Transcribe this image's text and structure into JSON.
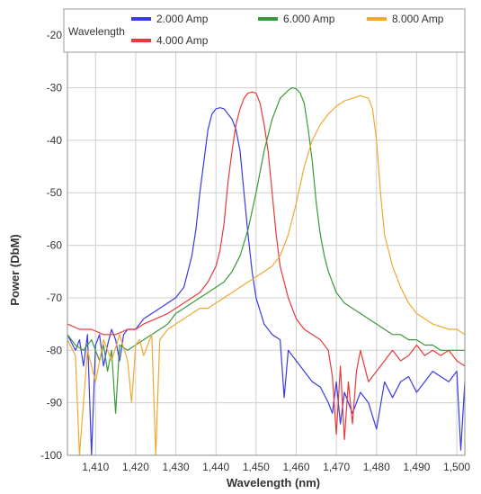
{
  "chart_data": {
    "type": "line",
    "xlabel": "Wavelength (nm)",
    "ylabel": "Power (DbM)",
    "xlim": [
      1403,
      1502
    ],
    "ylim": [
      -100,
      -15
    ],
    "grid": true,
    "legend": {
      "title": "Wavelength",
      "placement": "top",
      "entries": [
        "2.000 Amp",
        "4.000 Amp",
        "6.000 Amp",
        "8.000 Amp"
      ]
    },
    "x_ticks": [
      {
        "value": 1410,
        "label": "1,410"
      },
      {
        "value": 1420,
        "label": "1,420"
      },
      {
        "value": 1430,
        "label": "1,430"
      },
      {
        "value": 1440,
        "label": "1,440"
      },
      {
        "value": 1450,
        "label": "1,450"
      },
      {
        "value": 1460,
        "label": "1,460"
      },
      {
        "value": 1470,
        "label": "1,470"
      },
      {
        "value": 1480,
        "label": "1,480"
      },
      {
        "value": 1490,
        "label": "1,490"
      },
      {
        "value": 1500,
        "label": "1,500"
      }
    ],
    "y_ticks": [
      {
        "value": -20,
        "label": "-20"
      },
      {
        "value": -30,
        "label": "-30"
      },
      {
        "value": -40,
        "label": "-40"
      },
      {
        "value": -50,
        "label": "-50"
      },
      {
        "value": -60,
        "label": "-60"
      },
      {
        "value": -70,
        "label": "-70"
      },
      {
        "value": -80,
        "label": "-80"
      },
      {
        "value": -90,
        "label": "-90"
      },
      {
        "value": -100,
        "label": "-100"
      }
    ],
    "series": [
      {
        "name": "2.000 Amp",
        "color": "#3a3ae6",
        "x": [
          1403,
          1405,
          1406,
          1407,
          1408,
          1409,
          1410,
          1411,
          1412,
          1413,
          1414,
          1415,
          1416,
          1417,
          1418,
          1419,
          1420,
          1422,
          1424,
          1426,
          1428,
          1430,
          1432,
          1434,
          1435,
          1436,
          1437,
          1438,
          1439,
          1440,
          1441,
          1442,
          1443,
          1444,
          1445,
          1446,
          1447,
          1448,
          1449,
          1450,
          1452,
          1454,
          1456,
          1457,
          1458,
          1460,
          1462,
          1464,
          1466,
          1468,
          1469,
          1470,
          1471,
          1472,
          1473,
          1474,
          1476,
          1478,
          1480,
          1482,
          1484,
          1486,
          1488,
          1490,
          1492,
          1494,
          1496,
          1498,
          1500,
          1501,
          1502
        ],
        "y": [
          -77,
          -80,
          -78,
          -83,
          -77,
          -100,
          -79,
          -77,
          -83,
          -79,
          -76,
          -78,
          -82,
          -77,
          -76,
          -76,
          -76,
          -74,
          -73,
          -72,
          -71,
          -70,
          -68,
          -62,
          -57,
          -50,
          -44,
          -38,
          -35,
          -34,
          -33.8,
          -34,
          -35,
          -36,
          -38,
          -42,
          -50,
          -58,
          -65,
          -70,
          -75,
          -77,
          -78,
          -89,
          -80,
          -82,
          -84,
          -86,
          -87,
          -90,
          -92,
          -86,
          -94,
          -88,
          -90,
          -92,
          -88,
          -90,
          -95,
          -86,
          -89,
          -86,
          -85,
          -88,
          -86,
          -84,
          -85,
          -86,
          -84,
          -99,
          -86
        ]
      },
      {
        "name": "4.000 Amp",
        "color": "#e83a3a",
        "x": [
          1403,
          1406,
          1409,
          1412,
          1415,
          1418,
          1420,
          1422,
          1425,
          1428,
          1430,
          1432,
          1434,
          1436,
          1438,
          1440,
          1441,
          1442,
          1443,
          1444,
          1445,
          1446,
          1447,
          1448,
          1449,
          1450,
          1451,
          1452,
          1453,
          1454,
          1455,
          1456,
          1458,
          1460,
          1462,
          1464,
          1466,
          1468,
          1469,
          1470,
          1471,
          1472,
          1473,
          1474,
          1475,
          1476,
          1478,
          1480,
          1482,
          1484,
          1486,
          1488,
          1490,
          1492,
          1494,
          1496,
          1498,
          1500,
          1502
        ],
        "y": [
          -75,
          -76,
          -76,
          -77,
          -77,
          -76,
          -76,
          -75,
          -74,
          -73,
          -72,
          -71,
          -70,
          -69,
          -67,
          -64,
          -61,
          -56,
          -48,
          -42,
          -37,
          -34,
          -32,
          -31,
          -30.8,
          -31,
          -33,
          -37,
          -42,
          -50,
          -58,
          -64,
          -70,
          -74,
          -76,
          -77,
          -78,
          -80,
          -85,
          -96,
          -83,
          -97,
          -86,
          -94,
          -84,
          -80,
          -86,
          -84,
          -82,
          -80,
          -82,
          -81,
          -79,
          -81,
          -80,
          -81,
          -80,
          -82,
          -83
        ]
      },
      {
        "name": "6.000 Amp",
        "color": "#3a9a3a",
        "x": [
          1403,
          1405,
          1407,
          1409,
          1411,
          1412,
          1413,
          1414,
          1415,
          1416,
          1418,
          1420,
          1422,
          1424,
          1426,
          1428,
          1430,
          1432,
          1434,
          1436,
          1438,
          1440,
          1442,
          1444,
          1446,
          1448,
          1450,
          1452,
          1454,
          1456,
          1458,
          1459,
          1460,
          1461,
          1462,
          1463,
          1464,
          1465,
          1466,
          1467,
          1468,
          1470,
          1472,
          1474,
          1476,
          1478,
          1480,
          1482,
          1484,
          1486,
          1488,
          1490,
          1492,
          1494,
          1496,
          1498,
          1500,
          1502
        ],
        "y": [
          -77,
          -79,
          -80,
          -78,
          -82,
          -79,
          -84,
          -80,
          -92,
          -79,
          -80,
          -79,
          -78,
          -77,
          -76,
          -75,
          -73,
          -72,
          -71,
          -70,
          -69,
          -68,
          -67,
          -65,
          -62,
          -57,
          -50,
          -42,
          -36,
          -32,
          -30.5,
          -30,
          -30.2,
          -31,
          -33,
          -38,
          -44,
          -52,
          -58,
          -62,
          -65,
          -69,
          -71,
          -72,
          -73,
          -74,
          -75,
          -76,
          -77,
          -77,
          -78,
          -78,
          -79,
          -79,
          -80,
          -80,
          -80,
          -80
        ]
      },
      {
        "name": "8.000 Amp",
        "color": "#f0a830",
        "x": [
          1403,
          1405,
          1406,
          1408,
          1410,
          1412,
          1414,
          1416,
          1418,
          1419,
          1420,
          1421,
          1422,
          1424,
          1425,
          1426,
          1428,
          1430,
          1432,
          1434,
          1436,
          1438,
          1440,
          1442,
          1444,
          1446,
          1448,
          1450,
          1452,
          1454,
          1456,
          1458,
          1460,
          1462,
          1464,
          1466,
          1468,
          1470,
          1472,
          1474,
          1476,
          1478,
          1479,
          1480,
          1481,
          1482,
          1484,
          1486,
          1488,
          1490,
          1492,
          1494,
          1496,
          1498,
          1500,
          1502
        ],
        "y": [
          -78,
          -81,
          -100,
          -80,
          -86,
          -78,
          -82,
          -77,
          -82,
          -90,
          -79,
          -78,
          -81,
          -77,
          -100,
          -78,
          -76,
          -75,
          -74,
          -73,
          -72,
          -72,
          -71,
          -70,
          -69,
          -68,
          -67,
          -66,
          -65,
          -64,
          -62,
          -58,
          -52,
          -45,
          -40,
          -37,
          -35,
          -33.5,
          -32.5,
          -32,
          -31.5,
          -32,
          -34,
          -40,
          -50,
          -58,
          -64,
          -68,
          -71,
          -73,
          -74,
          -75,
          -75.5,
          -76,
          -76,
          -77
        ]
      }
    ]
  }
}
